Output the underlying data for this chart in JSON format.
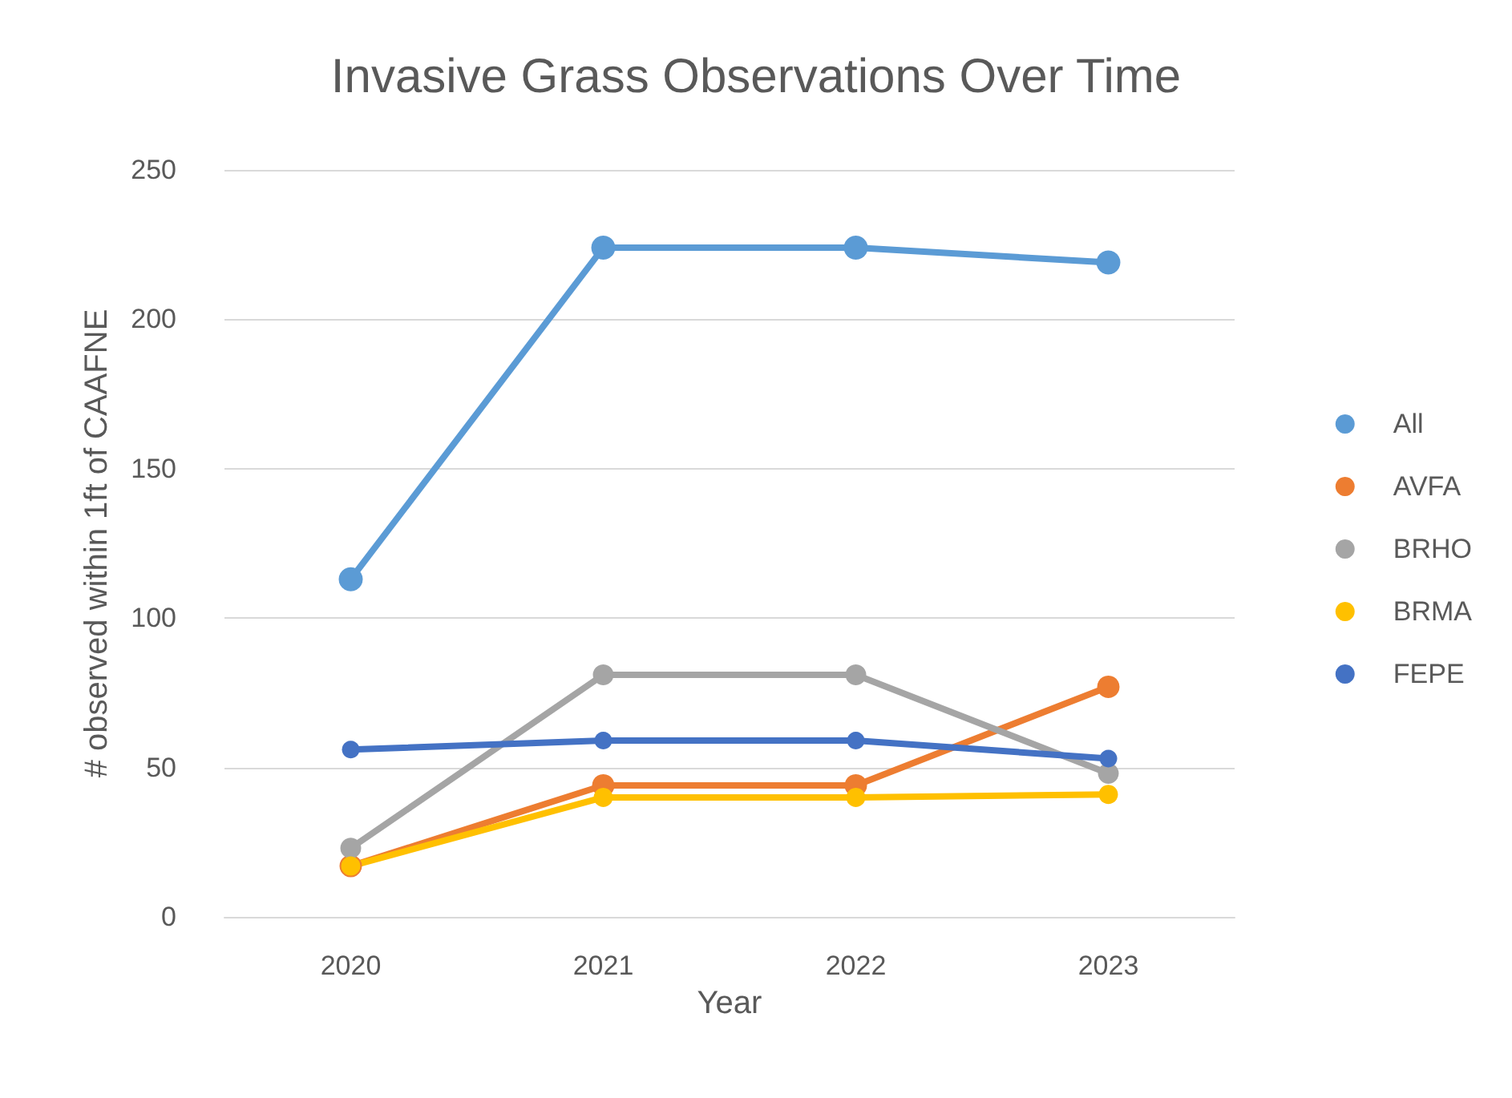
{
  "chart_data": {
    "type": "line",
    "title": "Invasive Grass Observations Over Time",
    "xlabel": "Year",
    "ylabel": "# observed within 1ft of CAAFNE",
    "categories": [
      "2020",
      "2021",
      "2022",
      "2023"
    ],
    "series": [
      {
        "name": "All",
        "color": "#5b9bd5",
        "values": [
          113,
          224,
          224,
          219
        ]
      },
      {
        "name": "AVFA",
        "color": "#ed7d31",
        "values": [
          17,
          44,
          44,
          77
        ]
      },
      {
        "name": "BRHO",
        "color": "#a5a5a5",
        "values": [
          23,
          81,
          81,
          48
        ]
      },
      {
        "name": "BRMA",
        "color": "#ffc000",
        "values": [
          17,
          40,
          40,
          41
        ]
      },
      {
        "name": "FEPE",
        "color": "#4472c4",
        "values": [
          56,
          59,
          59,
          53
        ]
      }
    ],
    "ylim": [
      0,
      250
    ],
    "yticks": [
      0,
      50,
      100,
      150,
      200,
      250
    ],
    "grid": "y",
    "legend": "right",
    "marker": "circle",
    "line_style": "solid"
  }
}
